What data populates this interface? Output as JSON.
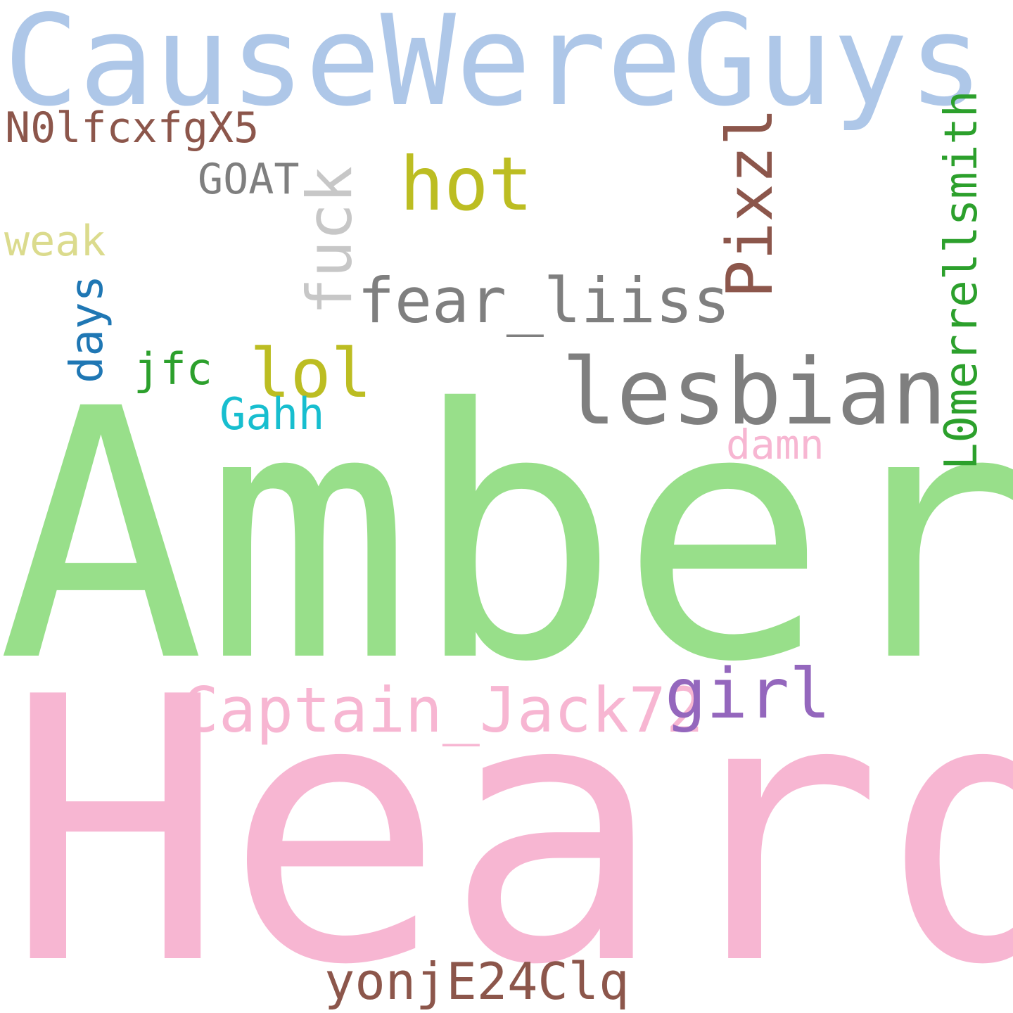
{
  "words": {
    "causewereguys": {
      "text": "CauseWereGuys",
      "color": "#aec7e8"
    },
    "amber": {
      "text": "Amber",
      "color": "#98df8a"
    },
    "heard": {
      "text": "Heard",
      "color": "#f7b6d2"
    },
    "lesbian": {
      "text": "lesbian",
      "color": "#7f7f7f"
    },
    "hot": {
      "text": "hot",
      "color": "#bcbd22"
    },
    "fear_liiss": {
      "text": "fear_liiss",
      "color": "#7f7f7f"
    },
    "captain_jack72": {
      "text": "Captain_Jack72",
      "color": "#f7b6d2"
    },
    "girl": {
      "text": "girl",
      "color": "#9467bd"
    },
    "lol": {
      "text": "lol",
      "color": "#bcbd22"
    },
    "n0lfcxfgx5": {
      "text": "N0lfcxfgX5",
      "color": "#8c564b"
    },
    "goat": {
      "text": "GOAT",
      "color": "#7f7f7f"
    },
    "weak": {
      "text": "weak",
      "color": "#dbdb8d"
    },
    "jfc": {
      "text": "jfc",
      "color": "#2ca02c"
    },
    "gahh": {
      "text": "Gahh",
      "color": "#17becf"
    },
    "damn": {
      "text": "damn",
      "color": "#f7b6d2"
    },
    "yonje24clq": {
      "text": "yonjE24Clq",
      "color": "#8c564b"
    },
    "fuck": {
      "text": "fuck",
      "color": "#c7c7c7"
    },
    "pixzl": {
      "text": "Pixzl",
      "color": "#8c564b"
    },
    "l0merrellsmith": {
      "text": "L0merrellsmith",
      "color": "#2ca02c"
    },
    "days": {
      "text": "days",
      "color": "#1f77b4"
    }
  }
}
